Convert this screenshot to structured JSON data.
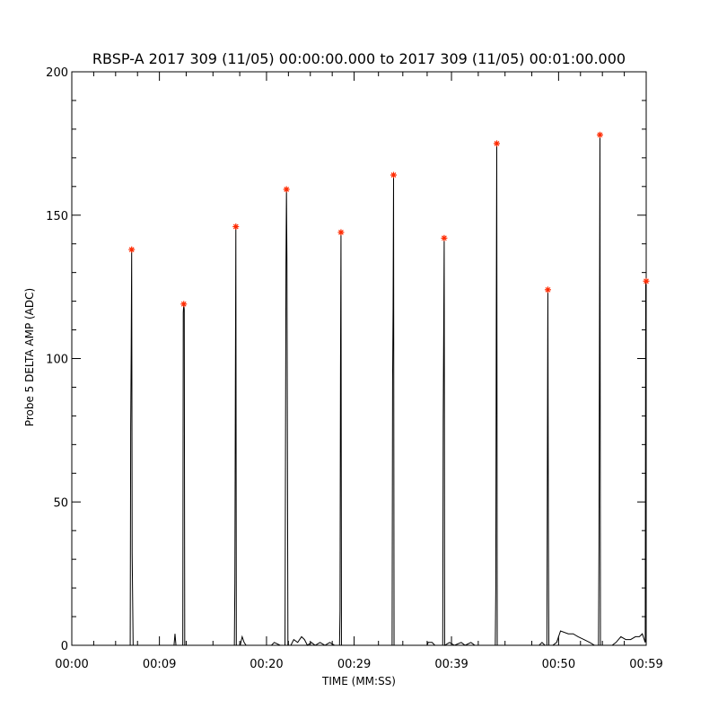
{
  "chart_data": {
    "type": "line",
    "title": "RBSP-A 2017 309 (11/05) 00:00:00.000 to 2017 309 (11/05) 00:01:00.000",
    "xlabel": "TIME (MM:SS)",
    "ylabel": "Probe 5 DELTA AMP (ADC)",
    "xlim": [
      0,
      59
    ],
    "ylim": [
      0,
      200
    ],
    "x_ticks": [
      {
        "value": 0,
        "label": "00:00"
      },
      {
        "value": 9,
        "label": "00:09"
      },
      {
        "value": 20,
        "label": "00:20"
      },
      {
        "value": 29,
        "label": "00:29"
      },
      {
        "value": 39,
        "label": "00:39"
      },
      {
        "value": 50,
        "label": "00:50"
      },
      {
        "value": 59,
        "label": "00:59"
      }
    ],
    "y_ticks": [
      {
        "value": 0,
        "label": "0"
      },
      {
        "value": 50,
        "label": "50"
      },
      {
        "value": 100,
        "label": "100"
      },
      {
        "value": 150,
        "label": "150"
      },
      {
        "value": 200,
        "label": "200"
      }
    ],
    "grid": false,
    "series": [
      {
        "style": "line",
        "color": "#000000",
        "points": [
          [
            0,
            0
          ],
          [
            6,
            0
          ],
          [
            6.05,
            76
          ],
          [
            6.1,
            102
          ],
          [
            6.15,
            138
          ],
          [
            6.2,
            32
          ],
          [
            6.3,
            0
          ],
          [
            10.5,
            0
          ],
          [
            10.6,
            4
          ],
          [
            10.7,
            0
          ],
          [
            11.4,
            0
          ],
          [
            11.45,
            116
          ],
          [
            11.5,
            119
          ],
          [
            11.55,
            117
          ],
          [
            11.6,
            0
          ],
          [
            16.7,
            0
          ],
          [
            16.75,
            22
          ],
          [
            16.8,
            88
          ],
          [
            16.85,
            146
          ],
          [
            16.9,
            0
          ],
          [
            17.3,
            0
          ],
          [
            17.5,
            3
          ],
          [
            17.7,
            1
          ],
          [
            17.9,
            0
          ],
          [
            20,
            0
          ],
          [
            20.5,
            0
          ],
          [
            20.8,
            1
          ],
          [
            21.4,
            0
          ],
          [
            21.9,
            0
          ],
          [
            22.0,
            133
          ],
          [
            22.05,
            159
          ],
          [
            22.1,
            133
          ],
          [
            22.2,
            0
          ],
          [
            22.5,
            0
          ],
          [
            22.8,
            2
          ],
          [
            23.2,
            1
          ],
          [
            23.6,
            3
          ],
          [
            23.9,
            2
          ],
          [
            24.2,
            0
          ],
          [
            24.6,
            1
          ],
          [
            25,
            0
          ],
          [
            25.5,
            1
          ],
          [
            26,
            0
          ],
          [
            26.5,
            1
          ],
          [
            27,
            0
          ],
          [
            27.5,
            0
          ],
          [
            27.55,
            12
          ],
          [
            27.6,
            96
          ],
          [
            27.65,
            144
          ],
          [
            27.7,
            0
          ],
          [
            28,
            0
          ],
          [
            29,
            0
          ],
          [
            32.9,
            0
          ],
          [
            32.95,
            92
          ],
          [
            33.0,
            117
          ],
          [
            33.05,
            164
          ],
          [
            33.1,
            0
          ],
          [
            34,
            0
          ],
          [
            36.5,
            0
          ],
          [
            36.6,
            1
          ],
          [
            37,
            1
          ],
          [
            37.3,
            0
          ],
          [
            38.1,
            0
          ],
          [
            38.15,
            79
          ],
          [
            38.2,
            109
          ],
          [
            38.25,
            142
          ],
          [
            38.3,
            0
          ],
          [
            38.8,
            1
          ],
          [
            39.3,
            0
          ],
          [
            40,
            1
          ],
          [
            40.4,
            0
          ],
          [
            41,
            1
          ],
          [
            41.4,
            0
          ],
          [
            43.5,
            0
          ],
          [
            43.55,
            20
          ],
          [
            43.6,
            112
          ],
          [
            43.65,
            175
          ],
          [
            43.7,
            0
          ],
          [
            46,
            0
          ],
          [
            48,
            0
          ],
          [
            48.3,
            1
          ],
          [
            48.6,
            0
          ],
          [
            48.8,
            0
          ],
          [
            48.85,
            64
          ],
          [
            48.9,
            124
          ],
          [
            48.95,
            44
          ],
          [
            49.0,
            0
          ],
          [
            49.4,
            0
          ],
          [
            49.8,
            1
          ],
          [
            50.2,
            5
          ],
          [
            51,
            4
          ],
          [
            51.5,
            4
          ],
          [
            52,
            3
          ],
          [
            52.6,
            2
          ],
          [
            53.2,
            1
          ],
          [
            53.7,
            0
          ],
          [
            54.1,
            0
          ],
          [
            54.15,
            35
          ],
          [
            54.2,
            104
          ],
          [
            54.25,
            178
          ],
          [
            54.3,
            0
          ],
          [
            55.5,
            0
          ],
          [
            55.9,
            1
          ],
          [
            56.4,
            3
          ],
          [
            56.9,
            2
          ],
          [
            57.4,
            2
          ],
          [
            57.9,
            3
          ],
          [
            58.3,
            3
          ],
          [
            58.6,
            4
          ],
          [
            58.8,
            2
          ],
          [
            58.9,
            1
          ],
          [
            58.95,
            127
          ],
          [
            59,
            120
          ]
        ]
      },
      {
        "style": "markers",
        "marker": "asterisk",
        "color": "#ff2a00",
        "points": [
          [
            6.15,
            138
          ],
          [
            11.5,
            119
          ],
          [
            16.85,
            146
          ],
          [
            22.05,
            159
          ],
          [
            27.65,
            144
          ],
          [
            33.05,
            164
          ],
          [
            38.25,
            142
          ],
          [
            43.65,
            175
          ],
          [
            48.9,
            124
          ],
          [
            54.25,
            178
          ],
          [
            59,
            127
          ]
        ]
      }
    ]
  }
}
